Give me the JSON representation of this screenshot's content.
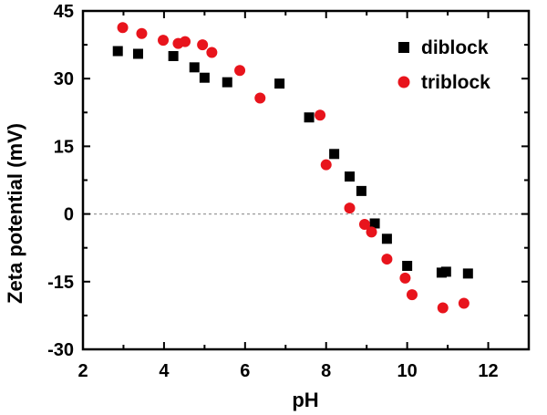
{
  "chart_data": {
    "type": "scatter",
    "xlabel": "pH",
    "ylabel": "Zeta potential (mV)",
    "xlim": [
      2,
      13
    ],
    "ylim": [
      -30,
      45
    ],
    "xticks": [
      "2",
      "4",
      "6",
      "8",
      "10",
      "12"
    ],
    "yticks": [
      "-30",
      "-15",
      "0",
      "15",
      "30",
      "45"
    ],
    "zero_line": true,
    "grid": false,
    "legend_position": "top-right",
    "series": [
      {
        "name": "diblock",
        "marker": "square",
        "color": "#000000",
        "x": [
          2.86,
          3.36,
          4.23,
          4.75,
          5.0,
          5.56,
          6.85,
          7.58,
          8.2,
          8.58,
          8.87,
          9.2,
          9.5,
          10.0,
          10.85,
          10.96,
          11.5
        ],
        "y": [
          36.1,
          35.5,
          35.0,
          32.5,
          30.2,
          29.2,
          28.9,
          21.4,
          13.3,
          8.3,
          5.1,
          -2.1,
          -5.5,
          -11.5,
          -13.0,
          -12.8,
          -13.2
        ]
      },
      {
        "name": "triblock",
        "marker": "circle",
        "color": "#e8141c",
        "x": [
          2.98,
          3.45,
          3.98,
          4.35,
          4.52,
          4.95,
          5.18,
          5.87,
          6.37,
          7.85,
          8.0,
          8.58,
          8.95,
          9.12,
          9.5,
          9.95,
          10.12,
          10.88,
          11.4
        ],
        "y": [
          41.3,
          40.0,
          38.5,
          37.8,
          38.2,
          37.5,
          35.8,
          31.8,
          25.7,
          21.9,
          10.9,
          1.3,
          -2.3,
          -4.0,
          -10.0,
          -14.2,
          -17.9,
          -20.8,
          -19.8
        ]
      }
    ]
  }
}
